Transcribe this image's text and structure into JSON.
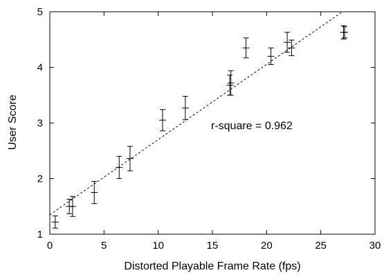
{
  "chart_data": {
    "type": "scatter",
    "title": "",
    "xlabel": "Distorted Playable Frame Rate (fps)",
    "ylabel": "User Score",
    "xlim": [
      0,
      30
    ],
    "ylim": [
      1,
      5
    ],
    "xticks": [
      "0",
      "5",
      "10",
      "15",
      "20",
      "25",
      "30"
    ],
    "yticks": [
      "1",
      "2",
      "3",
      "4",
      "5"
    ],
    "grid": false,
    "legend": "none",
    "points": [
      {
        "x": 0.5,
        "y": 1.22,
        "err": 0.11
      },
      {
        "x": 1.8,
        "y": 1.5,
        "err": 0.13
      },
      {
        "x": 2.1,
        "y": 1.5,
        "err": 0.18
      },
      {
        "x": 4.1,
        "y": 1.75,
        "err": 0.2
      },
      {
        "x": 6.4,
        "y": 2.2,
        "err": 0.2
      },
      {
        "x": 7.4,
        "y": 2.36,
        "err": 0.22
      },
      {
        "x": 10.4,
        "y": 3.05,
        "err": 0.19
      },
      {
        "x": 12.5,
        "y": 3.27,
        "err": 0.21
      },
      {
        "x": 16.6,
        "y": 3.68,
        "err": 0.18
      },
      {
        "x": 16.7,
        "y": 3.72,
        "err": 0.22
      },
      {
        "x": 18.1,
        "y": 4.35,
        "err": 0.18
      },
      {
        "x": 20.4,
        "y": 4.2,
        "err": 0.15
      },
      {
        "x": 21.9,
        "y": 4.45,
        "err": 0.18
      },
      {
        "x": 22.3,
        "y": 4.35,
        "err": 0.14
      },
      {
        "x": 27.1,
        "y": 4.63,
        "err": 0.12
      },
      {
        "x": 27.2,
        "y": 4.63,
        "err": 0.1
      }
    ],
    "fit": {
      "slope": 0.1352,
      "intercept": 1.35
    },
    "annotation": "r-square = 0.962",
    "colors": {
      "marks": "#000000",
      "background": "#ffffff"
    }
  }
}
